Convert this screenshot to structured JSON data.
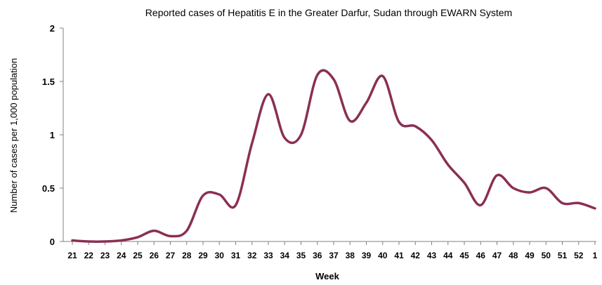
{
  "chart_data": {
    "type": "line",
    "title": "Reported cases of Hepatitis E in the Greater Darfur, Sudan through EWARN System",
    "xlabel": "Week",
    "ylabel": "Number of cases per 1,000 population",
    "categories": [
      "21",
      "22",
      "23",
      "24",
      "25",
      "26",
      "27",
      "28",
      "29",
      "30",
      "31",
      "32",
      "33",
      "34",
      "35",
      "36",
      "37",
      "38",
      "39",
      "40",
      "41",
      "42",
      "43",
      "44",
      "45",
      "46",
      "47",
      "48",
      "49",
      "50",
      "51",
      "52",
      "1"
    ],
    "yticks": [
      "0",
      "0.5",
      "1",
      "1.5",
      "2"
    ],
    "ylim": [
      0,
      2
    ],
    "grid": false,
    "legend": "none",
    "series": [
      {
        "values": [
          0.01,
          0.0,
          0.0,
          0.01,
          0.04,
          0.1,
          0.05,
          0.1,
          0.43,
          0.44,
          0.34,
          0.92,
          1.38,
          0.97,
          1.0,
          1.56,
          1.52,
          1.13,
          1.3,
          1.55,
          1.12,
          1.08,
          0.95,
          0.72,
          0.55,
          0.34,
          0.62,
          0.5,
          0.46,
          0.5,
          0.36,
          0.36,
          0.31
        ],
        "color": "#8b2f54"
      }
    ]
  }
}
